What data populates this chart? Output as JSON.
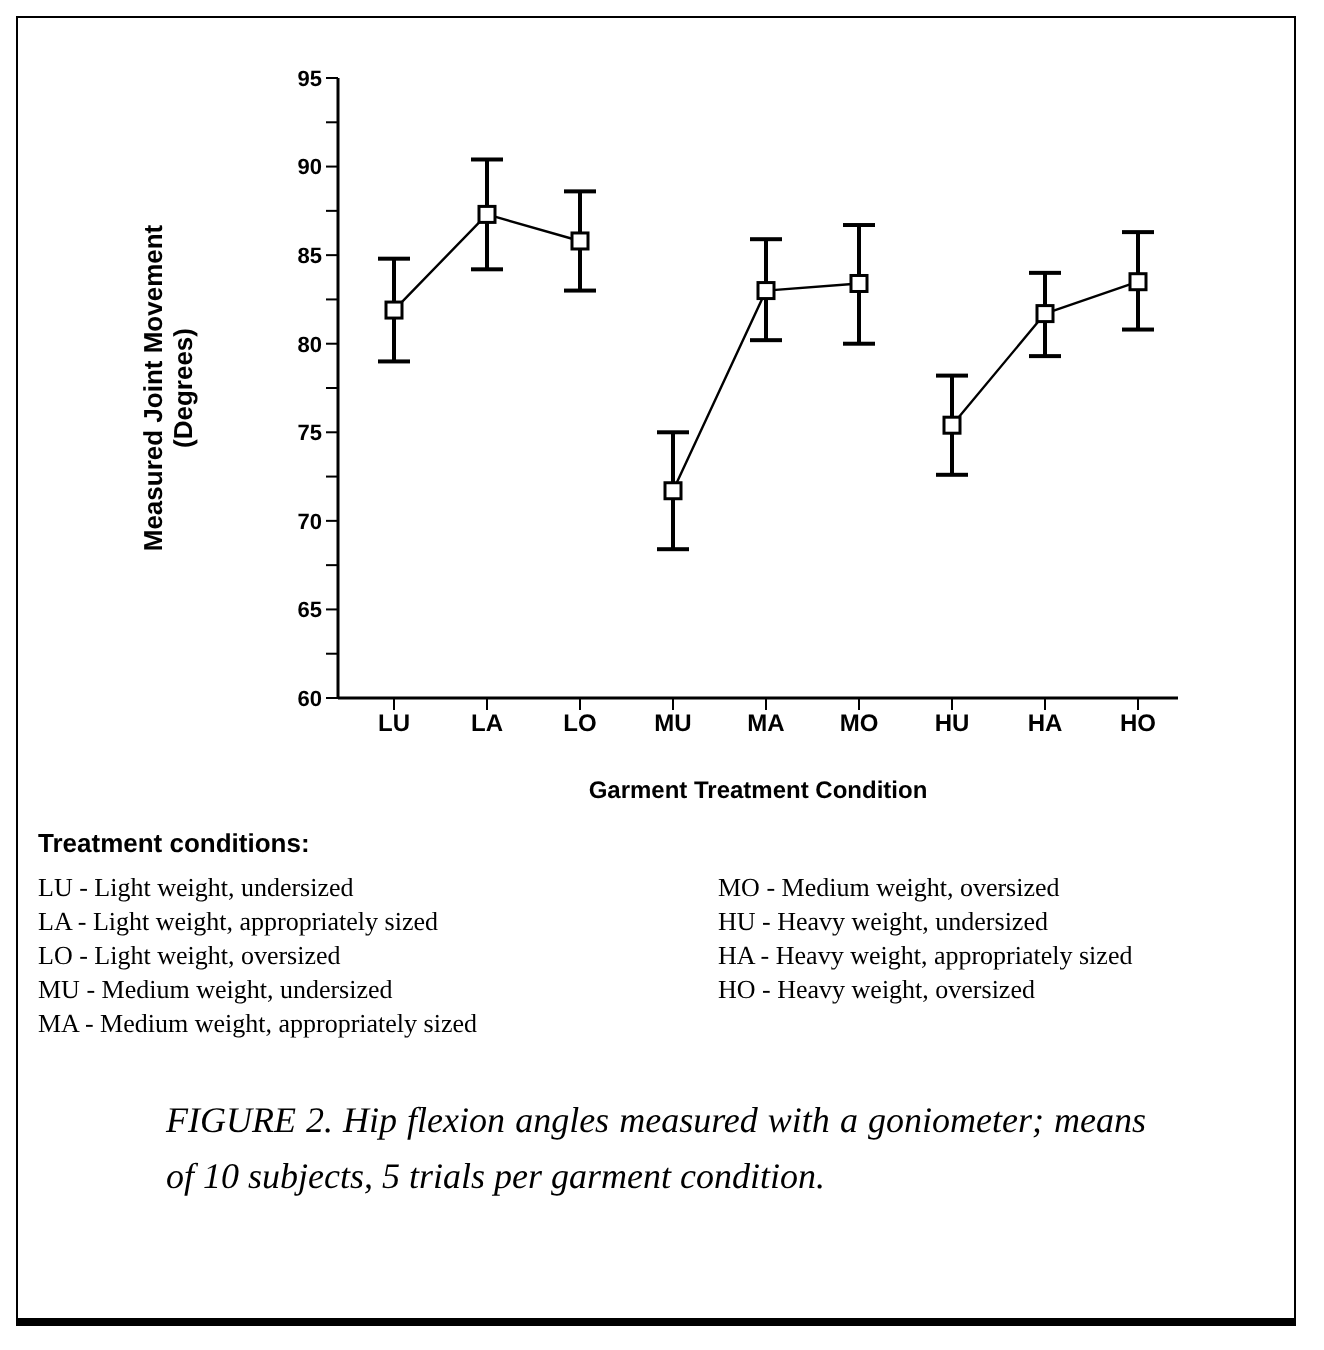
{
  "chart_data": {
    "type": "line",
    "xlabel": "Garment Treatment Condition",
    "ylabel": "Measured Joint Movement\n(Degrees)",
    "categories": [
      "LU",
      "LA",
      "LO",
      "MU",
      "MA",
      "MO",
      "HU",
      "HA",
      "HO"
    ],
    "series": [
      {
        "color": "#000000",
        "values": [
          81.9,
          87.3,
          85.8,
          null,
          null,
          null,
          null,
          null,
          null
        ],
        "errors": [
          [
            79.0,
            84.8
          ],
          [
            84.2,
            90.4
          ],
          [
            83.0,
            88.6
          ],
          null,
          null,
          null,
          null,
          null,
          null
        ]
      },
      {
        "color": "#000000",
        "values": [
          null,
          null,
          null,
          71.7,
          83.0,
          83.4,
          null,
          null,
          null
        ],
        "errors": [
          null,
          null,
          null,
          [
            68.4,
            75.0
          ],
          [
            80.2,
            85.9
          ],
          [
            80.0,
            86.7
          ],
          null,
          null,
          null
        ]
      },
      {
        "color": "#000000",
        "values": [
          null,
          null,
          null,
          null,
          null,
          null,
          75.4,
          81.7,
          83.5
        ],
        "errors": [
          null,
          null,
          null,
          null,
          null,
          null,
          [
            72.6,
            78.2
          ],
          [
            79.3,
            84.0
          ],
          [
            80.8,
            86.3
          ]
        ]
      }
    ],
    "ylim": [
      60,
      95
    ],
    "yticks": [
      60,
      {
        "value": 62.5,
        "label": null
      },
      65,
      {
        "value": 67.5,
        "label": null
      },
      70,
      {
        "value": 72.5,
        "label": null
      },
      75,
      {
        "value": 77.5,
        "label": null
      },
      80,
      {
        "value": 82.5,
        "label": null
      },
      85,
      {
        "value": 87.5,
        "label": null
      },
      90,
      {
        "value": 92.5,
        "label": null
      },
      95
    ],
    "grid": false,
    "legend": false,
    "marker": "square",
    "line_style": "solid",
    "annotations": [
      "Treatment conditions:",
      "LU - Light weight, undersized",
      "LA - Light weight, appropriately sized",
      "LO - Light weight, oversized",
      "MU - Medium weight, undersized",
      "MA - Medium weight, appropriately sized",
      "MO - Medium weight, oversized",
      "HU - Heavy weight, undersized",
      "HA - Heavy weight, appropriately sized",
      "HO - Heavy weight, oversized",
      "FIGURE 2. Hip flexion angles measured with a goniometer; means of 10 subjects, 5 trials per garment condition."
    ]
  }
}
